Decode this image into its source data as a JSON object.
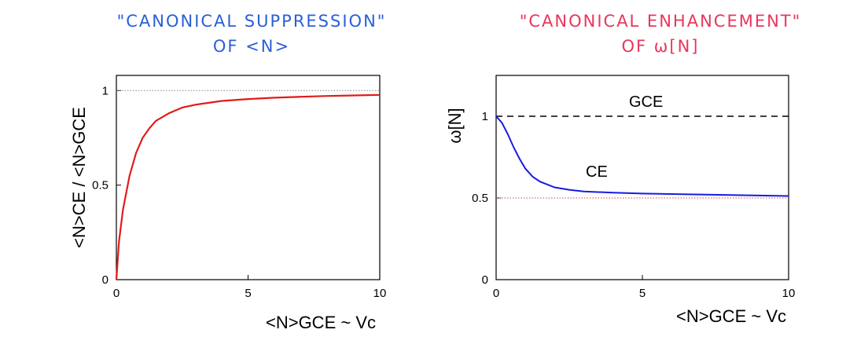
{
  "left_title": {
    "line1": "\"CANONICAL SUPPRESSION\"",
    "line2": "OF <N>",
    "color": "#2a5fd6"
  },
  "right_title": {
    "line1": "\"CANONICAL ENHANCEMENT\"",
    "line2": "OF ω[N]",
    "color": "#e8375a"
  },
  "chart_data": [
    {
      "type": "line",
      "title": "\"CANONICAL SUPPRESSION\" OF <N>",
      "xlabel": "<N>GCE ~ Vc",
      "ylabel": "<N>CE / <N>GCE",
      "xlim": [
        0,
        10
      ],
      "ylim": [
        0,
        1.08
      ],
      "xticks": [
        0,
        5,
        10
      ],
      "yticks": [
        0,
        0.5,
        1
      ],
      "xtick_labels": [
        "0",
        "5",
        "10"
      ],
      "ytick_labels": [
        "0",
        "0.5",
        "1"
      ],
      "reference_line": {
        "y": 1,
        "style": "dotted",
        "color": "#888888"
      },
      "grid": false,
      "series": [
        {
          "color": "#e01b1b",
          "x": [
            0,
            0.1,
            0.25,
            0.5,
            0.75,
            1,
            1.25,
            1.5,
            2,
            2.5,
            3,
            3.5,
            4,
            5,
            6,
            7,
            8,
            9,
            10
          ],
          "y": [
            0,
            0.2,
            0.37,
            0.55,
            0.67,
            0.75,
            0.8,
            0.84,
            0.88,
            0.91,
            0.925,
            0.935,
            0.945,
            0.955,
            0.962,
            0.967,
            0.971,
            0.974,
            0.977
          ]
        }
      ]
    },
    {
      "type": "line",
      "title": "\"CANONICAL ENHANCEMENT\" OF ω[N]",
      "xlabel": "<N>GCE ~ Vc",
      "ylabel": "ω[N]",
      "xlim": [
        0,
        10
      ],
      "ylim": [
        0,
        1.25
      ],
      "xticks": [
        0,
        5,
        10
      ],
      "yticks": [
        0,
        0.5,
        1
      ],
      "xtick_labels": [
        "0",
        "5",
        "10"
      ],
      "ytick_labels": [
        "0",
        "0.5",
        "1"
      ],
      "reference_line": {
        "y": 0.5,
        "style": "dotted",
        "color": "#e04040"
      },
      "grid": false,
      "annotations": [
        "GCE",
        "CE"
      ],
      "series": [
        {
          "name": "GCE",
          "color": "#000000",
          "style": "dashed",
          "x": [
            0,
            10
          ],
          "y": [
            1,
            1
          ]
        },
        {
          "name": "CE",
          "color": "#1a1ae0",
          "x": [
            0,
            0.2,
            0.4,
            0.6,
            0.8,
            1,
            1.25,
            1.5,
            2,
            2.5,
            3,
            4,
            5,
            6,
            7,
            8,
            9,
            10
          ],
          "y": [
            1,
            0.96,
            0.89,
            0.81,
            0.74,
            0.68,
            0.63,
            0.6,
            0.565,
            0.55,
            0.54,
            0.532,
            0.527,
            0.524,
            0.521,
            0.518,
            0.515,
            0.512
          ]
        }
      ]
    }
  ]
}
